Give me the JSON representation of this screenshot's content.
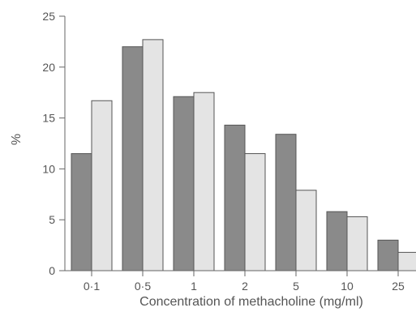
{
  "chart_data": {
    "type": "bar",
    "title": "",
    "xlabel": "Concentration of methacholine (mg/ml)",
    "ylabel": "%",
    "categories": [
      "0·1",
      "0·5",
      "1",
      "2",
      "5",
      "10",
      "25"
    ],
    "series": [
      {
        "values": [
          11.5,
          22.0,
          17.1,
          14.3,
          13.4,
          5.8,
          3.0
        ],
        "color": "#8a8a8a"
      },
      {
        "values": [
          16.7,
          22.7,
          17.5,
          11.5,
          7.9,
          5.3,
          1.8
        ],
        "color": "#e4e4e4"
      }
    ],
    "ylim": [
      0,
      25
    ],
    "yticks": [
      0,
      5,
      10,
      15,
      20,
      25
    ],
    "grid": false,
    "legend": "none"
  }
}
